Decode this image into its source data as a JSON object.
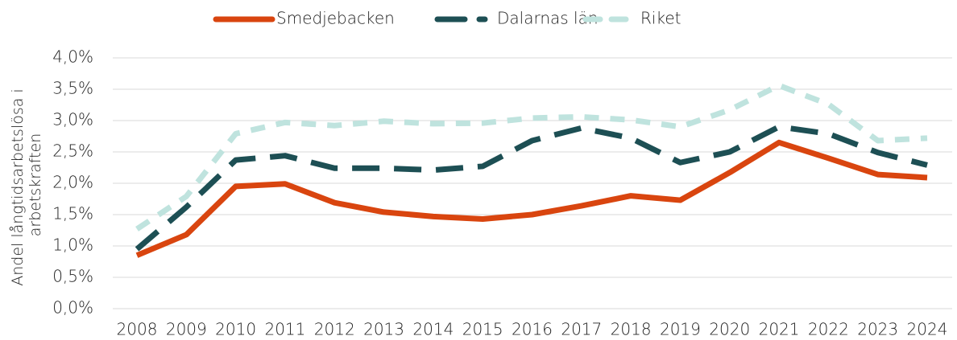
{
  "chart_data": {
    "type": "line",
    "ylabel": [
      "Andel långtidsarbetslösa i",
      "arbetskraften"
    ],
    "categories": [
      "2008",
      "2009",
      "2010",
      "2011",
      "2012",
      "2013",
      "2014",
      "2015",
      "2016",
      "2017",
      "2018",
      "2019",
      "2020",
      "2021",
      "2022",
      "2023",
      "2024"
    ],
    "series": [
      {
        "name": "Smedjebacken",
        "color": "#d9450f",
        "dash": "solid",
        "values": [
          0.85,
          1.18,
          1.95,
          1.99,
          1.69,
          1.54,
          1.47,
          1.43,
          1.5,
          1.64,
          1.8,
          1.73,
          2.17,
          2.65,
          2.4,
          2.14,
          2.09
        ]
      },
      {
        "name": "Dalarnas län",
        "color": "#1d4f54",
        "dash": "long-dash",
        "values": [
          0.95,
          1.62,
          2.37,
          2.44,
          2.24,
          2.24,
          2.21,
          2.27,
          2.68,
          2.88,
          2.72,
          2.33,
          2.5,
          2.9,
          2.79,
          2.49,
          2.29
        ]
      },
      {
        "name": "Riket",
        "color": "#bfe3de",
        "dash": "dash",
        "values": [
          1.27,
          1.79,
          2.79,
          2.97,
          2.92,
          2.99,
          2.95,
          2.96,
          3.04,
          3.06,
          3.01,
          2.9,
          3.17,
          3.56,
          3.26,
          2.68,
          2.72
        ]
      }
    ],
    "ylim": [
      0,
      4
    ],
    "yticks": [
      {
        "value": 0,
        "label": "0,0%"
      },
      {
        "value": 0.5,
        "label": "0,5%"
      },
      {
        "value": 1,
        "label": "1,0%"
      },
      {
        "value": 1.5,
        "label": "1,5%"
      },
      {
        "value": 2,
        "label": "2,0%"
      },
      {
        "value": 2.5,
        "label": "2,5%"
      },
      {
        "value": 3,
        "label": "3,0%"
      },
      {
        "value": 3.5,
        "label": "3,5%"
      },
      {
        "value": 4,
        "label": "4,0%"
      }
    ],
    "grid": true,
    "legend": "top"
  }
}
